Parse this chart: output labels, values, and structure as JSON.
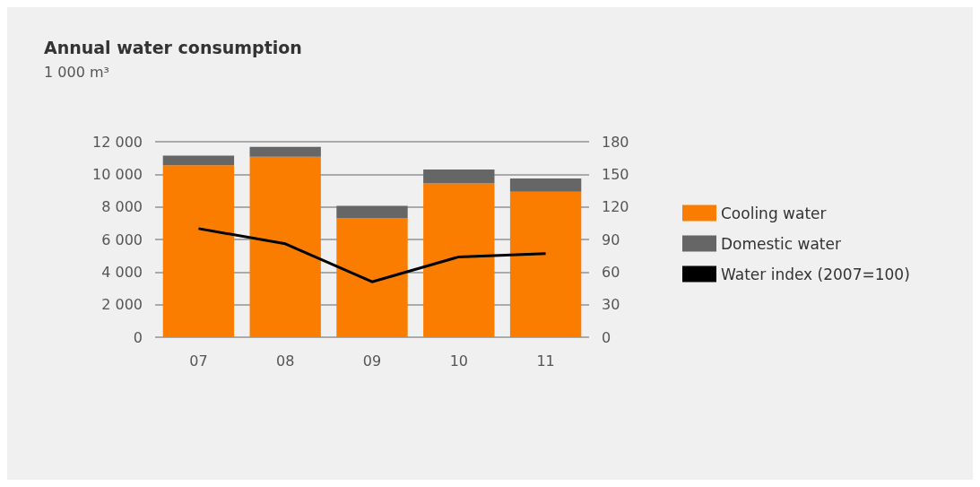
{
  "chart_data": {
    "type": "bar",
    "title": "Annual water consumption",
    "subtitle": "1 000 m³",
    "categories": [
      "07",
      "08",
      "09",
      "10",
      "11"
    ],
    "stacked": true,
    "series": [
      {
        "name": "Cooling water",
        "color": "#fb7d00",
        "values": [
          10550,
          11080,
          7300,
          9440,
          8930
        ]
      },
      {
        "name": "Domestic water",
        "color": "#666666",
        "values": [
          590,
          610,
          770,
          850,
          810
        ]
      },
      {
        "name": "Water index (2007=100)",
        "type": "line",
        "axis": "y2",
        "color": "#000000",
        "values": [
          100,
          86,
          51,
          74,
          77
        ]
      }
    ],
    "ylim": [
      0,
      12000
    ],
    "yticks": [
      {
        "value": 0,
        "label": "0"
      },
      {
        "value": 2000,
        "label": "2 000"
      },
      {
        "value": 4000,
        "label": "4 000"
      },
      {
        "value": 6000,
        "label": "6 000"
      },
      {
        "value": 8000,
        "label": "8 000"
      },
      {
        "value": 10000,
        "label": "10 000"
      },
      {
        "value": 12000,
        "label": "12 000"
      }
    ],
    "y2lim": [
      0,
      180
    ],
    "y2ticks": [
      0,
      30,
      60,
      90,
      120,
      150,
      180
    ],
    "grid": "y",
    "legend": "right",
    "marker": "none"
  }
}
